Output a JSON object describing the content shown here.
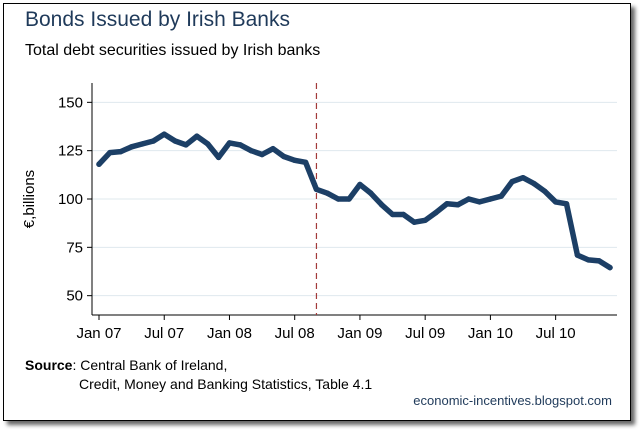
{
  "title": "Bonds Issued by Irish Banks",
  "subtitle": "Total debt securities issued by Irish banks",
  "source_label": "Source",
  "source_line1": ": Central Bank of Ireland,",
  "source_line2": "Credit, Money and Banking Statistics, Table 4.1",
  "blog": "economic-incentives.blogspot.com",
  "colors": {
    "line": "#1c3f66",
    "marker": "#a33a3a",
    "plot_bg": "#ffffff",
    "outer_bg": "#ffffff",
    "grid": "#dfe8ee"
  },
  "chart_data": {
    "type": "line",
    "title": "Bonds Issued by Irish Banks",
    "subtitle": "Total debt securities issued by Irish banks",
    "xlabel": "",
    "ylabel": "€,billions",
    "ylim": [
      40,
      160
    ],
    "yticks": [
      50,
      75,
      100,
      125,
      150
    ],
    "xticks": [
      "Jan 07",
      "Jul 07",
      "Jan 08",
      "Jul 08",
      "Jan 09",
      "Jul 09",
      "Jan 10",
      "Jul 10"
    ],
    "grid": true,
    "x": [
      "2007-01",
      "2007-02",
      "2007-03",
      "2007-04",
      "2007-05",
      "2007-06",
      "2007-07",
      "2007-08",
      "2007-09",
      "2007-10",
      "2007-11",
      "2007-12",
      "2008-01",
      "2008-02",
      "2008-03",
      "2008-04",
      "2008-05",
      "2008-06",
      "2008-07",
      "2008-08",
      "2008-09",
      "2008-10",
      "2008-11",
      "2008-12",
      "2009-01",
      "2009-02",
      "2009-03",
      "2009-04",
      "2009-05",
      "2009-06",
      "2009-07",
      "2009-08",
      "2009-09",
      "2009-10",
      "2009-11",
      "2009-12",
      "2010-01",
      "2010-02",
      "2010-03",
      "2010-04",
      "2010-05",
      "2010-06",
      "2010-07",
      "2010-08",
      "2010-09",
      "2010-10",
      "2010-11",
      "2010-12"
    ],
    "values": [
      118,
      124,
      124.5,
      127,
      128.5,
      130,
      133.5,
      130,
      128,
      132.5,
      128.5,
      121.5,
      129,
      128,
      125,
      123,
      126,
      122,
      120,
      119,
      105,
      103,
      100,
      100,
      107.5,
      103,
      97,
      92,
      92,
      88,
      89,
      93,
      97.5,
      97,
      100,
      98.5,
      100,
      101.5,
      109,
      111,
      108,
      104,
      98.5,
      97.5,
      71,
      68.5,
      68,
      64.5
    ],
    "reference_line": {
      "x": "2008-09",
      "style": "dashed"
    }
  }
}
